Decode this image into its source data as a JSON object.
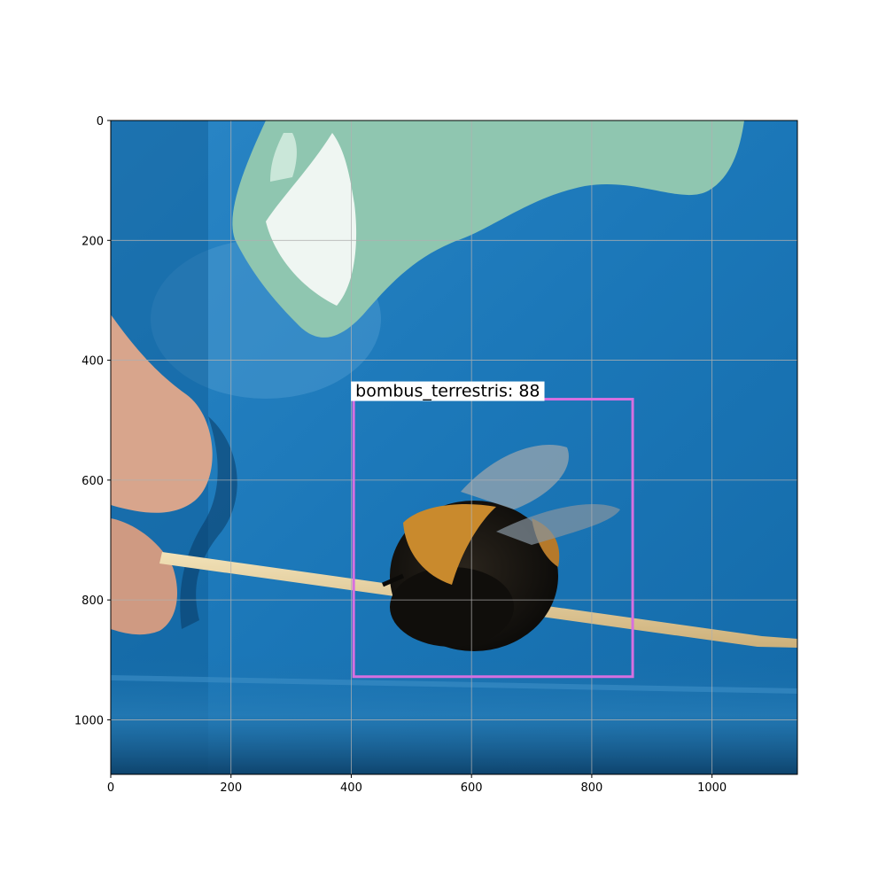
{
  "image": {
    "description_colors": {
      "background_blue": "#1b77b8",
      "deep_blue": "#0f5f9c",
      "mint_blob": "#8fc6b0",
      "toothpick": "#e6d2a4",
      "bee_fur": "#14120f",
      "bee_band": "#c98a2d",
      "skin": "#d8a58c"
    }
  },
  "axes": {
    "x_ticks": [
      "0",
      "200",
      "400",
      "600",
      "800",
      "1000"
    ],
    "y_ticks": [
      "0",
      "200",
      "400",
      "600",
      "800",
      "1000"
    ],
    "xlim": [
      0,
      1142
    ],
    "ylim": [
      1091,
      0
    ],
    "grid": true
  },
  "detection": {
    "label": "bombus_terrestris: 88",
    "class_name": "bombus_terrestris",
    "score": 88,
    "box_color": "#d66fe0",
    "box": {
      "x_min": 404,
      "y_min": 465,
      "x_max": 868,
      "y_max": 928
    }
  }
}
